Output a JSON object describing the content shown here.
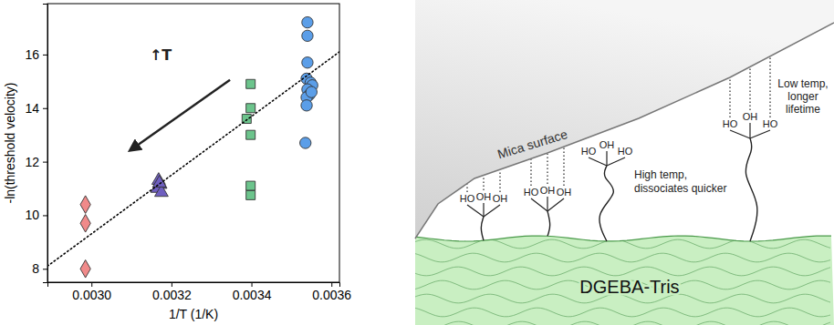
{
  "chart_data": {
    "type": "scatter",
    "x_label": "1/T (1/K)",
    "y_label": "-ln(threshold velocity)",
    "xlim": [
      0.00289,
      0.00362
    ],
    "ylim": [
      7.5,
      17.9
    ],
    "xticks": [
      {
        "value": 0.003,
        "label": "0.0030"
      },
      {
        "value": 0.0032,
        "label": "0.0032"
      },
      {
        "value": 0.0034,
        "label": "0.0034"
      },
      {
        "value": 0.0036,
        "label": "0.0036"
      }
    ],
    "yticks": [
      8,
      10,
      12,
      14,
      16
    ],
    "annotations": [
      {
        "text": "↑T",
        "x": 0.003173,
        "y": 15.8
      }
    ],
    "series": [
      {
        "color": "#f08a8a",
        "marker": "diamond",
        "x": [
          0.002985,
          0.002985,
          0.002985
        ],
        "values": [
          10.4,
          9.7,
          8.0
        ]
      },
      {
        "color": "#6f5fc0",
        "marker": "triangle",
        "x": [
          0.003168,
          0.003172,
          0.003165,
          0.003175,
          0.00317
        ],
        "values": [
          11.3,
          11.15,
          11.0,
          10.85,
          11.2
        ]
      },
      {
        "color": "#6cc48c",
        "marker": "square",
        "x": [
          0.003398,
          0.003398,
          0.003388,
          0.003398,
          0.003398,
          0.003398
        ],
        "values": [
          14.9,
          14.0,
          13.6,
          13.0,
          11.1,
          10.75
        ]
      },
      {
        "color": "#5b9ee8",
        "marker": "circle",
        "x": [
          0.00354,
          0.00354,
          0.00354,
          0.003538,
          0.003548,
          0.003552,
          0.00354,
          0.003545,
          0.003538,
          0.003538,
          0.003535,
          0.00355
        ],
        "values": [
          17.2,
          16.7,
          15.7,
          15.1,
          14.95,
          14.85,
          14.7,
          14.5,
          14.4,
          14.1,
          12.7,
          14.6
        ]
      },
      {
        "type": "line",
        "line_style": "dotted",
        "color": "#000000",
        "x": [
          0.00289,
          0.00362
        ],
        "values": [
          8.1,
          16.1
        ]
      }
    ]
  },
  "diagram": {
    "mica_label": "Mica surface",
    "substrate_label": "DGEBA-Tris",
    "high_temp_label": [
      "High temp,",
      "dissociates quicker"
    ],
    "low_temp_label": [
      "Low temp,",
      "longer",
      "lifetime"
    ],
    "chains": [
      [
        "HO",
        "OH",
        "OH"
      ],
      [
        "HO",
        "OH",
        "OH"
      ],
      [
        "HO",
        "OH",
        "HO"
      ],
      [
        "HO",
        "OH",
        "HO"
      ]
    ]
  }
}
